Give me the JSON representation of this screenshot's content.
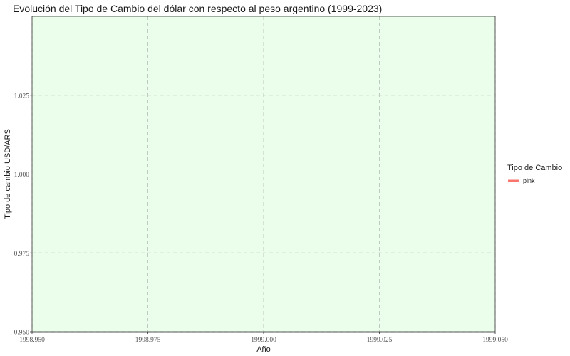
{
  "chart_data": {
    "type": "line",
    "title": "Evolución del Tipo de Cambio del dólar con respecto al peso argentino (1999-2023)",
    "xlabel": "Año",
    "ylabel": "Tipo de cambio USD/ARS",
    "xlim": [
      1998.95,
      1999.05
    ],
    "ylim": [
      0.95,
      1.05
    ],
    "x_ticks": [
      1998.95,
      1998.975,
      1999.0,
      1999.025,
      1999.05
    ],
    "x_tick_labels": [
      "1998.950",
      "1998.975",
      "1999.000",
      "1999.025",
      "1999.050"
    ],
    "y_ticks": [
      0.95,
      0.975,
      1.0,
      1.025
    ],
    "y_tick_labels": [
      "0.950",
      "0.975",
      "1.000",
      "1.025"
    ],
    "grid": true,
    "legend": {
      "title": "Tipo de Cambio",
      "placement": "right",
      "entries": [
        {
          "label": "pink",
          "color": "#f8766d"
        }
      ]
    },
    "series": [
      {
        "name": "pink",
        "color": "#f8766d",
        "x": [],
        "y": []
      }
    ],
    "panel_color": "#ebfdeb",
    "grid_color": "#bfc9bf"
  }
}
